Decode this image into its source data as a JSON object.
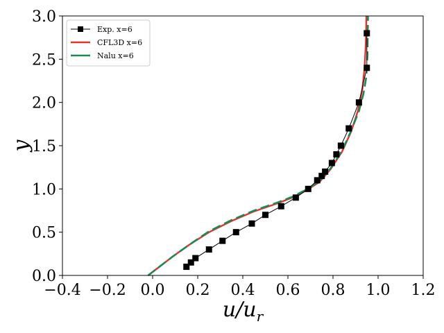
{
  "chart_data": {
    "type": "line",
    "title": "",
    "xlabel": "u/u_r",
    "xlabel_main": "u/u",
    "xlabel_sub": "r",
    "ylabel": "y",
    "xlim": [
      -0.4,
      1.2
    ],
    "ylim": [
      0.0,
      3.0
    ],
    "xticks": [
      -0.4,
      -0.2,
      0.0,
      0.2,
      0.4,
      0.6,
      0.8,
      1.0,
      1.2
    ],
    "xtick_labels": [
      "−0.4",
      "−0.2",
      "0.0",
      "0.2",
      "0.4",
      "0.6",
      "0.8",
      "1.0",
      "1.2"
    ],
    "yticks": [
      0.0,
      0.5,
      1.0,
      1.5,
      2.0,
      2.5,
      3.0
    ],
    "ytick_labels": [
      "0.0",
      "0.5",
      "1.0",
      "1.5",
      "2.0",
      "2.5",
      "3.0"
    ],
    "grid": false,
    "legend_position": "top-left",
    "series": [
      {
        "name": "Exp. x=6",
        "color": "#000000",
        "style": "solid-square-markers",
        "x": [
          0.15,
          0.17,
          0.19,
          0.25,
          0.31,
          0.37,
          0.44,
          0.5,
          0.57,
          0.635,
          0.69,
          0.73,
          0.75,
          0.765,
          0.795,
          0.815,
          0.835,
          0.87,
          0.915,
          0.95,
          0.95
        ],
        "y": [
          0.1,
          0.15,
          0.2,
          0.3,
          0.4,
          0.5,
          0.6,
          0.7,
          0.8,
          0.9,
          1.0,
          1.1,
          1.15,
          1.2,
          1.3,
          1.4,
          1.5,
          1.7,
          2.0,
          2.4,
          2.8
        ]
      },
      {
        "name": "CFL3D x=6",
        "color": "#e8302c",
        "style": "solid",
        "x": [
          -0.02,
          0.03,
          0.09,
          0.16,
          0.25,
          0.35,
          0.45,
          0.55,
          0.62,
          0.68,
          0.74,
          0.79,
          0.84,
          0.88,
          0.91,
          0.93,
          0.94,
          0.945,
          0.947,
          0.948
        ],
        "y": [
          0.0,
          0.1,
          0.22,
          0.35,
          0.5,
          0.63,
          0.74,
          0.83,
          0.9,
          0.98,
          1.08,
          1.23,
          1.43,
          1.66,
          1.9,
          2.15,
          2.4,
          2.65,
          2.85,
          3.0
        ]
      },
      {
        "name": "Nalu x=6",
        "color": "#1a8a52",
        "style": "dashed",
        "x": [
          -0.02,
          0.03,
          0.09,
          0.16,
          0.25,
          0.35,
          0.45,
          0.55,
          0.62,
          0.68,
          0.74,
          0.79,
          0.84,
          0.88,
          0.915,
          0.935,
          0.948,
          0.953,
          0.955
        ],
        "y": [
          0.0,
          0.1,
          0.22,
          0.35,
          0.51,
          0.64,
          0.75,
          0.84,
          0.91,
          0.99,
          1.09,
          1.24,
          1.44,
          1.67,
          1.9,
          2.1,
          2.3,
          2.55,
          3.0
        ]
      }
    ]
  }
}
